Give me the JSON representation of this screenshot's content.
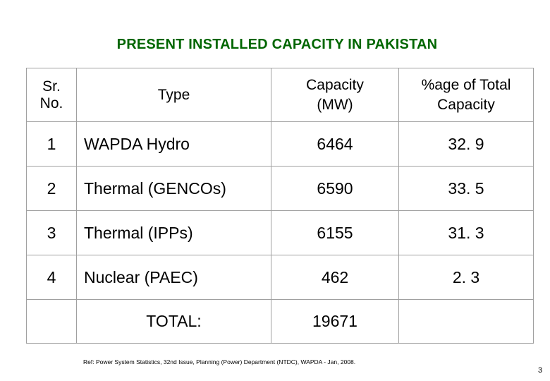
{
  "title": "PRESENT INSTALLED CAPACITY IN PAKISTAN",
  "headers": {
    "sr_line1": "Sr.",
    "sr_line2": "No.",
    "type": "Type",
    "capacity_line1": "Capacity",
    "capacity_line2": "(MW)",
    "pct_line1": "%age of Total",
    "pct_line2": "Capacity"
  },
  "rows": [
    {
      "sr": "1",
      "type": "WAPDA Hydro",
      "capacity": "6464",
      "pct": "32. 9"
    },
    {
      "sr": "2",
      "type": "Thermal (GENCOs)",
      "capacity": "6590",
      "pct": "33. 5"
    },
    {
      "sr": "3",
      "type": "Thermal (IPPs)",
      "capacity": "6155",
      "pct": "31. 3"
    },
    {
      "sr": "4",
      "type": "Nuclear (PAEC)",
      "capacity": "462",
      "pct": "2. 3"
    }
  ],
  "total": {
    "label": "TOTAL:",
    "capacity": "19671"
  },
  "reference": "Ref: Power System Statistics, 32nd Issue, Planning (Power) Department (NTDC), WAPDA - Jan, 2008.",
  "page_number": "3",
  "colors": {
    "title": "#006600",
    "border": "#a0a0a0"
  }
}
